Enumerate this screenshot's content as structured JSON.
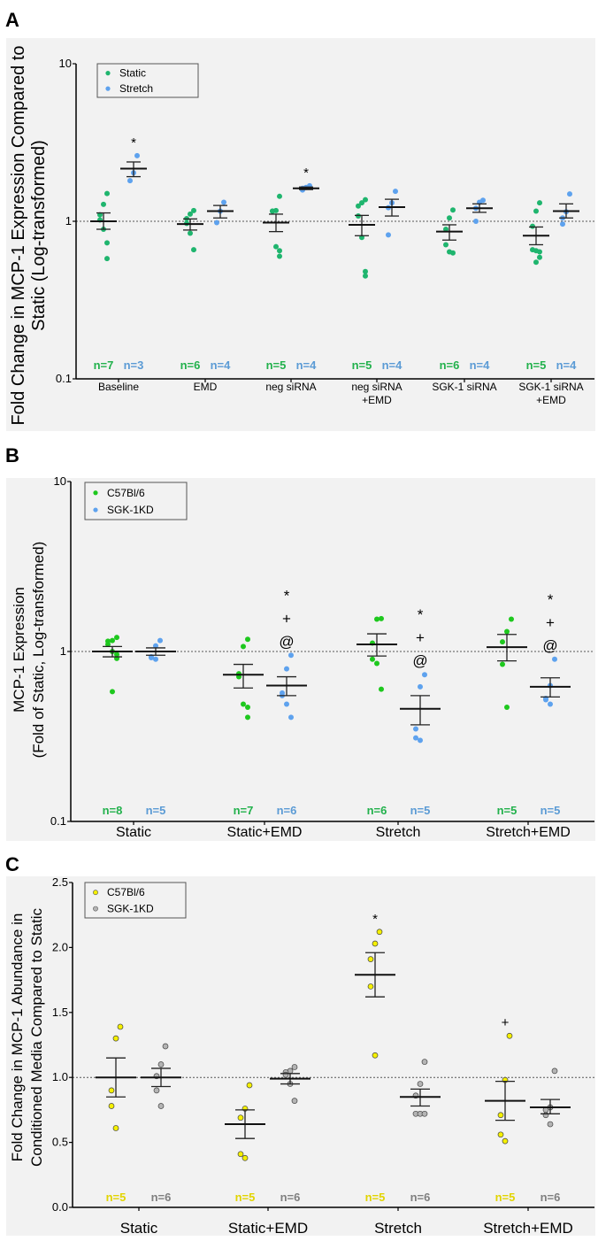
{
  "chart_data": [
    {
      "panel": "A",
      "type": "scatter",
      "scale": "log",
      "ylim": [
        0.1,
        10
      ],
      "yticks": [
        "0.1",
        "1",
        "10"
      ],
      "ylabel": [
        "Fold Change in MCP-1 Expression Compared to",
        "Static (Log-transformed)"
      ],
      "reference_line": 1,
      "legend": {
        "position": "top-left",
        "entries": [
          "Static",
          "Stretch"
        ]
      },
      "colors": {
        "s0": "#1fb56e",
        "s1": "#5ea2ee",
        "n0": "#22b14c",
        "n1": "#5b9bd5"
      },
      "categories": [
        [
          "Baseline"
        ],
        [
          "EMD"
        ],
        [
          "neg siRNA"
        ],
        [
          "neg siRNA",
          "+EMD"
        ],
        [
          "SGK-1 siRNA"
        ],
        [
          "SGK-1 siRNA",
          "+EMD"
        ]
      ],
      "groups": [
        [
          {
            "points": [
              1.5,
              1.28,
              1.1,
              1.02,
              0.89,
              0.73,
              0.58
            ],
            "mean": 1.0,
            "sem": [
              1.13,
              0.89
            ],
            "n": "n=7",
            "marks": []
          },
          {
            "points": [
              2.61,
              2.03,
              1.81
            ],
            "mean": 2.16,
            "sem": [
              2.38,
              1.92
            ],
            "n": "n=3",
            "marks": [
              "*"
            ]
          }
        ],
        [
          {
            "points": [
              1.17,
              1.11,
              1.04,
              0.97,
              0.84,
              0.66
            ],
            "mean": 0.96,
            "sem": [
              1.035,
              0.88
            ],
            "n": "n=6",
            "marks": []
          },
          {
            "points": [
              1.32,
              1.16,
              0.98
            ],
            "mean": 1.16,
            "sem": [
              1.26,
              1.05
            ],
            "n": "n=4",
            "marks": []
          }
        ],
        [
          {
            "points": [
              1.44,
              1.17,
              1.16,
              1.16,
              0.69,
              0.65,
              0.6
            ],
            "mean": 0.98,
            "sem": [
              1.11,
              0.86
            ],
            "n": "n=5",
            "marks": []
          },
          {
            "points": [
              1.68,
              1.64,
              1.62,
              1.58
            ],
            "mean": 1.62,
            "sem": [
              1.65,
              1.59
            ],
            "n": "n=4",
            "marks": [
              "*"
            ]
          }
        ],
        [
          {
            "points": [
              1.37,
              1.31,
              1.25,
              1.08,
              0.79,
              0.48,
              0.45
            ],
            "mean": 0.95,
            "sem": [
              1.09,
              0.81
            ],
            "n": "n=5",
            "marks": []
          },
          {
            "points": [
              1.55,
              1.31,
              1.22,
              0.82
            ],
            "mean": 1.23,
            "sem": [
              1.38,
              1.08
            ],
            "n": "n=4",
            "marks": []
          }
        ],
        [
          {
            "points": [
              1.18,
              1.05,
              0.89,
              0.71,
              0.64,
              0.63
            ],
            "mean": 0.86,
            "sem": [
              0.95,
              0.76
            ],
            "n": "n=6",
            "marks": []
          },
          {
            "points": [
              1.36,
              1.32,
              1.21,
              1.0
            ],
            "mean": 1.21,
            "sem": [
              1.29,
              1.14
            ],
            "n": "n=4",
            "marks": []
          }
        ],
        [
          {
            "points": [
              1.31,
              1.16,
              0.93,
              0.66,
              0.65,
              0.64,
              0.59,
              0.55
            ],
            "mean": 0.81,
            "sem": [
              0.92,
              0.71
            ],
            "n": "n=5",
            "marks": []
          },
          {
            "points": [
              1.49,
              1.15,
              1.05,
              0.96
            ],
            "mean": 1.16,
            "sem": [
              1.29,
              1.05
            ],
            "n": "n=4",
            "marks": []
          }
        ]
      ]
    },
    {
      "panel": "B",
      "type": "scatter",
      "scale": "log",
      "ylim": [
        0.1,
        10
      ],
      "yticks": [
        "0.1",
        "1",
        "10"
      ],
      "ylabel": [
        "MCP-1 Expression",
        "(Fold of Static, Log-transformed)"
      ],
      "reference_line": 1,
      "legend": {
        "position": "top-left",
        "entries": [
          "C57Bl/6",
          "SGK-1KD"
        ]
      },
      "colors": {
        "s0": "#1ec81e",
        "s1": "#5ea2ee",
        "n0": "#22b14c",
        "n1": "#5b9bd5"
      },
      "categories": [
        [
          "Static"
        ],
        [
          "Static+EMD"
        ],
        [
          "Stretch"
        ],
        [
          "Stretch+EMD"
        ]
      ],
      "groups": [
        [
          {
            "points": [
              1.21,
              1.16,
              1.15,
              1.1,
              1.0,
              0.96,
              0.91,
              0.58
            ],
            "mean": 1.0,
            "sem": [
              1.07,
              0.93
            ],
            "n": "n=8",
            "marks": []
          },
          {
            "points": [
              1.16,
              1.08,
              0.93,
              0.92,
              0.9
            ],
            "mean": 1.0,
            "sem": [
              1.05,
              0.95
            ],
            "n": "n=5",
            "marks": []
          }
        ],
        [
          {
            "points": [
              1.18,
              1.07,
              0.74,
              0.71,
              0.49,
              0.47,
              0.41
            ],
            "mean": 0.73,
            "sem": [
              0.84,
              0.61
            ],
            "n": "n=7",
            "marks": []
          },
          {
            "points": [
              0.95,
              0.79,
              0.57,
              0.55,
              0.49,
              0.41
            ],
            "mean": 0.63,
            "sem": [
              0.71,
              0.55
            ],
            "n": "n=6",
            "marks": [
              "*",
              "+",
              "@"
            ]
          }
        ],
        [
          {
            "points": [
              1.56,
              1.55,
              1.12,
              0.9,
              0.85,
              0.6
            ],
            "mean": 1.1,
            "sem": [
              1.27,
              0.94
            ],
            "n": "n=6",
            "marks": []
          },
          {
            "points": [
              0.73,
              0.62,
              0.35,
              0.31,
              0.3
            ],
            "mean": 0.46,
            "sem": [
              0.55,
              0.37
            ],
            "n": "n=5",
            "marks": [
              "*",
              "+",
              "@"
            ]
          }
        ],
        [
          {
            "points": [
              1.55,
              1.31,
              1.14,
              0.84,
              0.47
            ],
            "mean": 1.06,
            "sem": [
              1.26,
              0.88
            ],
            "n": "n=5",
            "marks": []
          },
          {
            "points": [
              0.9,
              0.63,
              0.53,
              0.52,
              0.49
            ],
            "mean": 0.62,
            "sem": [
              0.7,
              0.54
            ],
            "n": "n=5",
            "marks": [
              "*",
              "+",
              "@"
            ]
          }
        ]
      ]
    },
    {
      "panel": "C",
      "type": "scatter",
      "scale": "linear",
      "ylim": [
        0,
        2.5
      ],
      "yticks": [
        "0.0",
        "0.5",
        "1.0",
        "1.5",
        "2.0",
        "2.5"
      ],
      "ylabel": [
        "Fold Change in MCP-1 Abundance in",
        "Conditioned Media Compared to Static"
      ],
      "reference_line": 1,
      "legend": {
        "position": "top-left",
        "entries": [
          "C57Bl/6",
          "SGK-1KD"
        ]
      },
      "colors": {
        "s0": "#f5f000",
        "s1": "#b4b4b4",
        "n0": "#e2d400",
        "n1": "#7f7f7f"
      },
      "categories": [
        [
          "Static"
        ],
        [
          "Static+EMD"
        ],
        [
          "Stretch"
        ],
        [
          "Stretch+EMD"
        ]
      ],
      "groups": [
        [
          {
            "points": [
              1.39,
              1.3,
              0.9,
              0.78,
              0.61
            ],
            "mean": 1.0,
            "sem": [
              1.15,
              0.85
            ],
            "n": "n=5",
            "marks": []
          },
          {
            "points": [
              1.24,
              1.1,
              1.01,
              0.9,
              0.78
            ],
            "mean": 1.0,
            "sem": [
              1.07,
              0.93
            ],
            "n": "n=6",
            "marks": []
          }
        ],
        [
          {
            "points": [
              0.94,
              0.76,
              0.69,
              0.41,
              0.38
            ],
            "mean": 0.64,
            "sem": [
              0.75,
              0.53
            ],
            "n": "n=5",
            "marks": []
          },
          {
            "points": [
              1.08,
              1.05,
              1.04,
              1.02,
              0.95,
              0.82
            ],
            "mean": 0.99,
            "sem": [
              1.03,
              0.95
            ],
            "n": "n=6",
            "marks": []
          }
        ],
        [
          {
            "points": [
              2.12,
              2.03,
              1.91,
              1.7,
              1.17
            ],
            "mean": 1.79,
            "sem": [
              1.96,
              1.62
            ],
            "n": "n=5",
            "marks": [
              "*"
            ]
          },
          {
            "points": [
              1.12,
              0.95,
              0.86,
              0.72,
              0.72,
              0.72
            ],
            "mean": 0.85,
            "sem": [
              0.91,
              0.78
            ],
            "n": "n=6",
            "marks": []
          }
        ],
        [
          {
            "points": [
              1.32,
              0.98,
              0.71,
              0.56,
              0.51
            ],
            "mean": 0.82,
            "sem": [
              0.97,
              0.67
            ],
            "n": "n=5",
            "marks": [
              "+"
            ]
          },
          {
            "points": [
              1.05,
              0.77,
              0.75,
              0.71,
              0.64
            ],
            "mean": 0.77,
            "sem": [
              0.83,
              0.72
            ],
            "n": "n=6",
            "marks": []
          }
        ]
      ]
    }
  ]
}
